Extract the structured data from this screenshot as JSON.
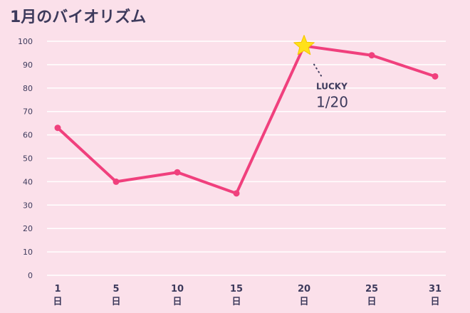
{
  "title": "1月のバイオリズム",
  "colors": {
    "background": "#fbe0ea",
    "line": "#f0407d",
    "gridline": "#ffffff",
    "star": "#ffe11a",
    "text": "#3d3a5c"
  },
  "chart_data": {
    "type": "line",
    "title": "1月のバイオリズム",
    "x": [
      1,
      5,
      10,
      15,
      20,
      25,
      31
    ],
    "x_tick_labels": [
      "1",
      "5",
      "10",
      "15",
      "20",
      "25",
      "31"
    ],
    "x_unit": "日",
    "y_ticks": [
      0,
      10,
      20,
      30,
      40,
      50,
      60,
      70,
      80,
      90,
      100
    ],
    "ylim": [
      0,
      100
    ],
    "grid": true,
    "series": [
      {
        "values": [
          63,
          40,
          44,
          35,
          98,
          94,
          85
        ]
      }
    ],
    "annotation": {
      "x": 20,
      "marker": "star-icon",
      "label": "LUCKY",
      "date": "1/20"
    }
  }
}
